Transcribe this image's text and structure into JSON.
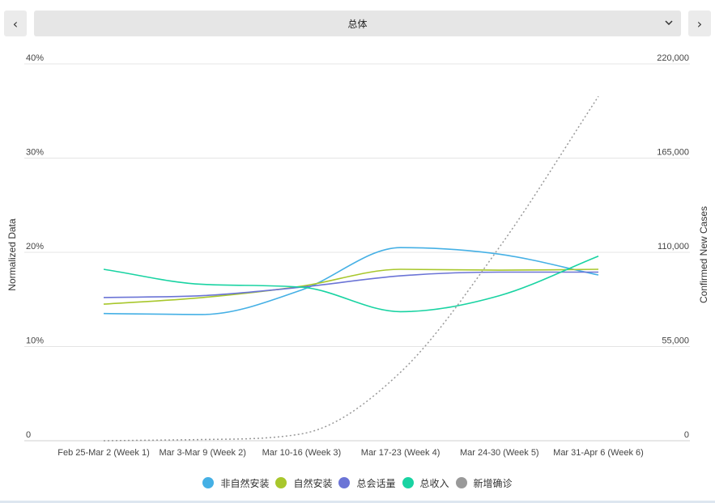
{
  "controls": {
    "prev_label": "‹",
    "next_label": "›",
    "select_value": "总体",
    "chevron_label": "⌄"
  },
  "colors": {
    "s1": "#45b0e5",
    "s2": "#a8c72c",
    "s3": "#6b74d6",
    "s4": "#19d3a2",
    "s5": "#999999"
  },
  "chart_data": {
    "type": "line",
    "categories": [
      "Feb 25-Mar 2 (Week 1)",
      "Mar 3-Mar 9 (Week 2)",
      "Mar 10-16 (Week 3)",
      "Mar 17-23 (Week 4)",
      "Mar 24-30 (Week 5)",
      "Mar 31-Apr 6 (Week 6)"
    ],
    "left_axis": {
      "label": "Normalized Data",
      "ticks": [
        "0",
        "10%",
        "20%",
        "30%",
        "40%"
      ],
      "ylim": [
        0,
        40
      ]
    },
    "right_axis": {
      "label": "Confirmed New Cases",
      "ticks": [
        "0",
        "55,000",
        "110,000",
        "165,000",
        "220,000"
      ],
      "ylim": [
        0,
        220000
      ]
    },
    "series": [
      {
        "name": "非自然安装",
        "axis": "left",
        "values": [
          13.5,
          13.4,
          16.0,
          20.5,
          19.8,
          17.6
        ]
      },
      {
        "name": "自然安装",
        "axis": "left",
        "values": [
          14.5,
          15.2,
          16.4,
          18.2,
          18.1,
          18.2
        ]
      },
      {
        "name": "总会话量",
        "axis": "left",
        "values": [
          15.2,
          15.4,
          16.3,
          17.5,
          17.9,
          17.9
        ]
      },
      {
        "name": "总收入",
        "axis": "left",
        "values": [
          18.2,
          16.6,
          16.3,
          13.7,
          15.4,
          19.6
        ]
      },
      {
        "name": "新增确诊",
        "axis": "right",
        "dashed": true,
        "values": [
          0,
          700,
          4000,
          40000,
          113000,
          201000
        ]
      }
    ],
    "legend_position": "bottom",
    "grid": true
  }
}
